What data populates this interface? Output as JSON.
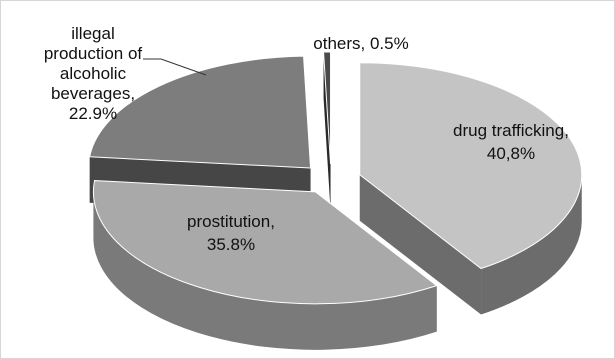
{
  "chart_data": {
    "type": "pie",
    "title": "",
    "slices": [
      {
        "label_lines": [
          "drug trafficking,",
          "40,8%"
        ],
        "value": 40.8,
        "color": "#c4c4c4",
        "side": "#6c6c6c"
      },
      {
        "label_lines": [
          "prostitution,",
          "35.8%"
        ],
        "value": 35.8,
        "color": "#a9a9a9",
        "side": "#7a7a7a"
      },
      {
        "label_lines": [
          "illegal",
          "production of",
          "alcoholic",
          "beverages,",
          "22.9%"
        ],
        "value": 22.9,
        "color": "#7d7d7d",
        "side": "#464646"
      },
      {
        "label_lines": [
          "others, 0.5%"
        ],
        "value": 0.5,
        "color": "#4a4a4a",
        "side": "#2a2a2a"
      }
    ],
    "style": "3d-exploded-pie",
    "legend": "none"
  }
}
